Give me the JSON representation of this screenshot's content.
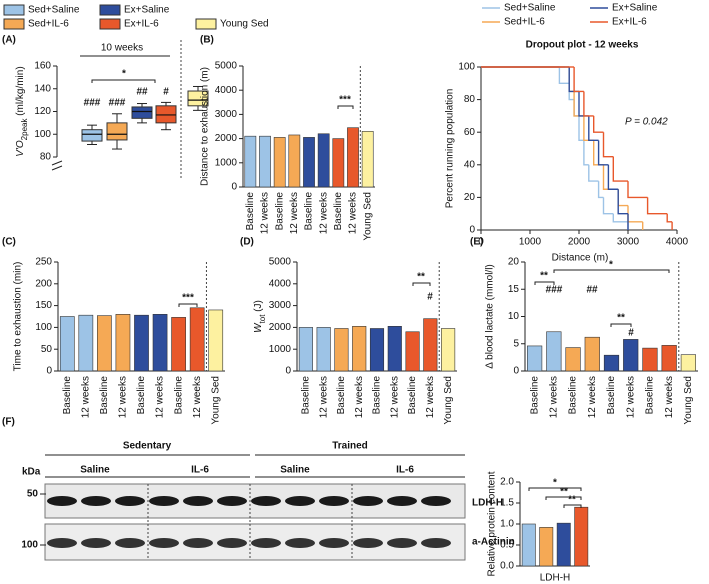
{
  "legend": {
    "items": [
      {
        "name": "Sed+Saline",
        "color": "#9dc3e6"
      },
      {
        "name": "Ex+Saline",
        "color": "#2e4d9c"
      },
      {
        "name": "Sed+IL-6",
        "color": "#f5a955"
      },
      {
        "name": "Ex+IL-6",
        "color": "#e8582b"
      },
      {
        "name": "Young Sed",
        "color": "#fdf1a0"
      }
    ]
  },
  "chart_data": [
    {
      "type": "box",
      "panel": "(A)",
      "ylabel": [
        "V'O",
        "2peak",
        " (ml/kg/min)"
      ],
      "ylim": [
        80,
        160
      ],
      "yticks": [
        80,
        100,
        120,
        140,
        160
      ],
      "bracket_label": "10 weeks",
      "annotations": [
        "*",
        "###",
        "###",
        "##",
        "#"
      ],
      "series": [
        {
          "name": "Sed+Saline",
          "color": "#9dc3e6",
          "min": 91,
          "q1": 94,
          "median": 100,
          "q3": 104,
          "max": 108
        },
        {
          "name": "Sed+IL-6",
          "color": "#f5a955",
          "min": 87,
          "q1": 95,
          "median": 100,
          "q3": 110,
          "max": 118
        },
        {
          "name": "Ex+Saline",
          "color": "#2e4d9c",
          "min": 110,
          "q1": 114,
          "median": 120,
          "q3": 124,
          "max": 127
        },
        {
          "name": "Ex+IL-6",
          "color": "#e8582b",
          "min": 104,
          "q1": 110,
          "median": 117,
          "q3": 125,
          "max": 128
        },
        {
          "name": "Young Sed",
          "color": "#fdf1a0",
          "min": 121,
          "q1": 125,
          "median": 130,
          "q3": 138,
          "max": 142
        }
      ]
    },
    {
      "type": "bar",
      "panel": "(B)",
      "ylabel": "Distance to exhaustion (m)",
      "categories": [
        "Baseline",
        "12 weeks",
        "Baseline",
        "12 weeks",
        "Baseline",
        "12 weeks",
        "Baseline",
        "12 weeks",
        "Young Sed"
      ],
      "values": [
        2100,
        2100,
        2050,
        2150,
        2050,
        2200,
        2000,
        2450,
        2300
      ],
      "colors": [
        "#9dc3e6",
        "#9dc3e6",
        "#f5a955",
        "#f5a955",
        "#2e4d9c",
        "#2e4d9c",
        "#e8582b",
        "#e8582b",
        "#fdf1a0"
      ],
      "ylim": [
        0,
        5000
      ],
      "yticks": [
        0,
        1000,
        2000,
        3000,
        4000,
        5000
      ],
      "annotations": [
        "***"
      ]
    },
    {
      "type": "step",
      "title": "Dropout plot - 12 weeks",
      "xlabel": "Distance (m)",
      "ylabel": "Percent running population",
      "xlim": [
        0,
        4000
      ],
      "ylim": [
        0,
        100
      ],
      "xticks": [
        0,
        1000,
        2000,
        3000,
        4000
      ],
      "yticks": [
        0,
        20,
        40,
        60,
        80,
        100
      ],
      "annotation": "P = 0.042",
      "series": [
        {
          "name": "Sed+Saline",
          "color": "#9dc3e6",
          "x": [
            0,
            1200,
            1600,
            1800,
            1900,
            2000,
            2100,
            2200,
            2400,
            2500,
            2700,
            3000
          ],
          "y": [
            100,
            100,
            90,
            80,
            70,
            55,
            40,
            30,
            20,
            10,
            5,
            0
          ]
        },
        {
          "name": "Sed+IL-6",
          "color": "#f5a955",
          "x": [
            0,
            1500,
            1800,
            1900,
            2100,
            2300,
            2500,
            2800,
            3000,
            3300
          ],
          "y": [
            100,
            100,
            85,
            70,
            55,
            40,
            25,
            15,
            5,
            0
          ]
        },
        {
          "name": "Ex+Saline",
          "color": "#2e4d9c",
          "x": [
            0,
            1600,
            1800,
            2000,
            2200,
            2400,
            2600,
            2800,
            3000
          ],
          "y": [
            100,
            100,
            85,
            70,
            55,
            40,
            25,
            10,
            0
          ]
        },
        {
          "name": "Ex+IL-6",
          "color": "#e8582b",
          "x": [
            0,
            1700,
            1900,
            2100,
            2300,
            2500,
            2700,
            3000,
            3400,
            3800,
            3900
          ],
          "y": [
            100,
            100,
            85,
            70,
            60,
            45,
            30,
            20,
            10,
            5,
            0
          ]
        }
      ]
    },
    {
      "type": "bar",
      "panel": "(C)",
      "ylabel": "Time to exhaustion (min)",
      "categories": [
        "Baseline",
        "12 weeks",
        "Baseline",
        "12 weeks",
        "Baseline",
        "12 weeks",
        "Baseline",
        "12 weeks",
        "Young Sed"
      ],
      "values": [
        125,
        128,
        127,
        130,
        128,
        130,
        123,
        145,
        140
      ],
      "colors": [
        "#9dc3e6",
        "#9dc3e6",
        "#f5a955",
        "#f5a955",
        "#2e4d9c",
        "#2e4d9c",
        "#e8582b",
        "#e8582b",
        "#fdf1a0"
      ],
      "ylim": [
        0,
        250
      ],
      "yticks": [
        0,
        50,
        100,
        150,
        200,
        250
      ],
      "annotations": [
        "***"
      ]
    },
    {
      "type": "bar",
      "panel": "(D)",
      "ylabel": [
        "W",
        "tot",
        " (J)"
      ],
      "categories": [
        "Baseline",
        "12 weeks",
        "Baseline",
        "12 weeks",
        "Baseline",
        "12 weeks",
        "Baseline",
        "12 weeks",
        "Young Sed"
      ],
      "values": [
        2000,
        2000,
        1950,
        2050,
        1950,
        2050,
        1800,
        2400,
        1950
      ],
      "colors": [
        "#9dc3e6",
        "#9dc3e6",
        "#f5a955",
        "#f5a955",
        "#2e4d9c",
        "#2e4d9c",
        "#e8582b",
        "#e8582b",
        "#fdf1a0"
      ],
      "ylim": [
        0,
        5000
      ],
      "yticks": [
        0,
        1000,
        2000,
        3000,
        4000,
        5000
      ],
      "annotations": [
        "**",
        "#"
      ]
    },
    {
      "type": "bar",
      "panel": "(E)",
      "ylabel": "Δ blood lactate (mmol/l)",
      "categories": [
        "Baseline",
        "12 weeks",
        "Baseline",
        "12 weeks",
        "Baseline",
        "12 weeks",
        "Baseline",
        "12 weeks",
        "Young Sed"
      ],
      "values": [
        4.6,
        7.2,
        4.3,
        6.2,
        2.9,
        5.8,
        4.2,
        4.7,
        3.0
      ],
      "colors": [
        "#9dc3e6",
        "#9dc3e6",
        "#f5a955",
        "#f5a955",
        "#2e4d9c",
        "#2e4d9c",
        "#e8582b",
        "#e8582b",
        "#fdf1a0"
      ],
      "ylim": [
        0,
        20
      ],
      "yticks": [
        0,
        5,
        10,
        15,
        20
      ],
      "annotations": [
        "**",
        "###",
        "##",
        "**",
        "#",
        "*"
      ]
    },
    {
      "type": "bar",
      "panel": "(F)",
      "ylabel": "Relative protein content",
      "category": "LDH-H",
      "values": [
        1.0,
        0.92,
        1.02,
        1.4
      ],
      "colors": [
        "#9dc3e6",
        "#f5a955",
        "#2e4d9c",
        "#e8582b"
      ],
      "ylim": [
        0,
        2
      ],
      "yticks": [
        {
          "value": 0,
          "label": "0.0"
        },
        {
          "value": 0.5,
          "label": "0.5"
        },
        {
          "value": 1,
          "label": "1.0"
        },
        {
          "value": 1.5,
          "label": "1.5"
        },
        {
          "value": 2,
          "label": "2.0"
        }
      ],
      "annotations": [
        "*",
        "**",
        "**"
      ]
    }
  ],
  "blot": {
    "kda": "kDa",
    "groups": [
      "Sedentary",
      "Trained"
    ],
    "treatments": [
      "Saline",
      "IL-6",
      "Saline",
      "IL-6"
    ],
    "markers": [
      "50",
      "100"
    ],
    "bands": [
      "LDH-H",
      "a-Actinin"
    ]
  }
}
